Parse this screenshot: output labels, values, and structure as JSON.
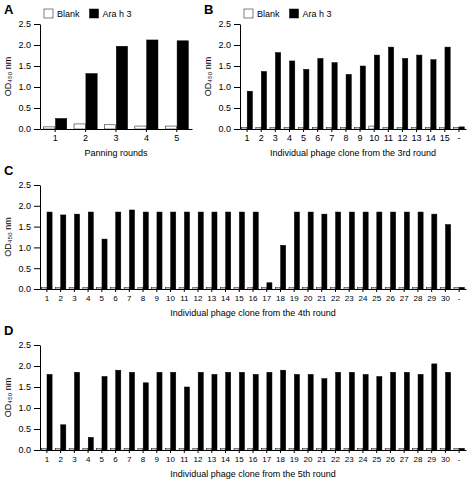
{
  "chart_data": [
    {
      "type": "bar",
      "title": "A",
      "xlabel": "Panning rounds",
      "ylabel": "OD₄₅₀ nm",
      "categories": [
        1,
        2,
        3,
        4,
        5
      ],
      "series": [
        {
          "name": "Blank",
          "color": "white",
          "values": [
            0.05,
            0.12,
            0.1,
            0.07,
            0.07
          ]
        },
        {
          "name": "Ara h 3",
          "color": "black",
          "values": [
            0.25,
            1.32,
            1.97,
            2.12,
            2.1
          ]
        }
      ],
      "ylim": [
        0,
        2.5
      ],
      "yticks": [
        {
          "value": 0.0,
          "label": "0.0"
        },
        0.5,
        {
          "value": 1.0,
          "label": "1.0"
        },
        1.5,
        {
          "value": 2.0,
          "label": "2.0"
        },
        2.5
      ],
      "grid": false,
      "legend": "upper left"
    },
    {
      "type": "bar",
      "title": "B",
      "xlabel": "Individual phage clone from the 3rd round",
      "ylabel": "OD₄₅₀ nm",
      "categories": [
        1,
        2,
        3,
        4,
        5,
        6,
        7,
        8,
        9,
        10,
        11,
        12,
        13,
        14,
        15,
        "-"
      ],
      "series": [
        {
          "name": "Blank",
          "color": "white",
          "values": [
            0.04,
            0.04,
            0.04,
            0.04,
            0.04,
            0.04,
            0.04,
            0.04,
            0.04,
            0.07,
            0.04,
            0.04,
            0.04,
            0.04,
            0.04,
            0.04
          ]
        },
        {
          "name": "Ara h 3",
          "color": "black",
          "values": [
            0.9,
            1.37,
            1.82,
            1.62,
            1.42,
            1.68,
            1.58,
            1.3,
            1.5,
            1.76,
            1.95,
            1.68,
            1.76,
            1.65,
            1.95,
            0.05
          ]
        }
      ],
      "ylim": [
        0,
        2.5
      ],
      "yticks": [
        {
          "value": 0.0,
          "label": "0.0"
        },
        0.5,
        {
          "value": 1.0,
          "label": "1.0"
        },
        1.5,
        {
          "value": 2.0,
          "label": "2.0"
        },
        2.5
      ],
      "grid": false,
      "legend": "upper left"
    },
    {
      "type": "bar",
      "title": "C",
      "xlabel": "Individual phage clone from the 4th round",
      "ylabel": "OD₄₅₀ nm",
      "categories": [
        1,
        2,
        3,
        4,
        5,
        6,
        7,
        8,
        9,
        10,
        11,
        12,
        13,
        14,
        15,
        16,
        17,
        18,
        19,
        20,
        21,
        22,
        23,
        24,
        25,
        26,
        27,
        28,
        29,
        30,
        "-"
      ],
      "series": [
        {
          "color": "white",
          "values": [
            0.04,
            0.04,
            0.04,
            0.04,
            0.04,
            0.04,
            0.04,
            0.04,
            0.04,
            0.04,
            0.04,
            0.04,
            0.04,
            0.04,
            0.04,
            0.04,
            0.04,
            0.04,
            0.04,
            0.04,
            0.04,
            0.04,
            0.04,
            0.04,
            0.04,
            0.04,
            0.04,
            0.04,
            0.04,
            0.04,
            0.04
          ]
        },
        {
          "color": "black",
          "values": [
            1.85,
            1.78,
            1.8,
            1.85,
            1.2,
            1.85,
            1.9,
            1.85,
            1.85,
            1.85,
            1.85,
            1.85,
            1.85,
            1.85,
            1.85,
            1.85,
            0.15,
            1.05,
            1.85,
            1.85,
            1.8,
            1.85,
            1.85,
            1.85,
            1.85,
            1.85,
            1.85,
            1.85,
            1.8,
            1.55,
            0.04
          ]
        }
      ],
      "ylim": [
        0,
        2.5
      ],
      "yticks": [
        {
          "value": 0.0,
          "label": "0.0"
        },
        0.5,
        {
          "value": 1.0,
          "label": "1.0"
        },
        1.5,
        {
          "value": 2.0,
          "label": "2.0"
        },
        2.5
      ],
      "grid": false
    },
    {
      "type": "bar",
      "title": "D",
      "xlabel": "Individual phage clone from the 5th round",
      "ylabel": "OD₄₅₀ nm",
      "categories": [
        1,
        2,
        3,
        4,
        5,
        6,
        7,
        8,
        9,
        10,
        11,
        12,
        13,
        14,
        15,
        16,
        17,
        18,
        19,
        20,
        21,
        22,
        23,
        24,
        25,
        26,
        27,
        28,
        29,
        30,
        "-"
      ],
      "series": [
        {
          "color": "white",
          "values": [
            0.04,
            0.04,
            0.04,
            0.04,
            0.04,
            0.04,
            0.04,
            0.04,
            0.04,
            0.04,
            0.04,
            0.04,
            0.04,
            0.04,
            0.04,
            0.04,
            0.04,
            0.04,
            0.04,
            0.04,
            0.04,
            0.04,
            0.04,
            0.04,
            0.04,
            0.04,
            0.04,
            0.04,
            0.04,
            0.04,
            0.04
          ]
        },
        {
          "color": "black",
          "values": [
            1.8,
            0.6,
            1.85,
            0.3,
            1.75,
            1.9,
            1.85,
            1.6,
            1.85,
            1.85,
            1.5,
            1.85,
            1.8,
            1.85,
            1.85,
            1.8,
            1.85,
            1.9,
            1.8,
            1.8,
            1.7,
            1.85,
            1.85,
            1.8,
            1.75,
            1.85,
            1.85,
            1.8,
            2.05,
            1.85,
            0.04
          ]
        }
      ],
      "ylim": [
        0,
        2.5
      ],
      "yticks": [
        {
          "value": 0.0,
          "label": "0.0"
        },
        0.5,
        {
          "value": 1.0,
          "label": "1.0"
        },
        1.5,
        {
          "value": 2.0,
          "label": "2.0"
        },
        2.5
      ],
      "grid": false
    }
  ]
}
